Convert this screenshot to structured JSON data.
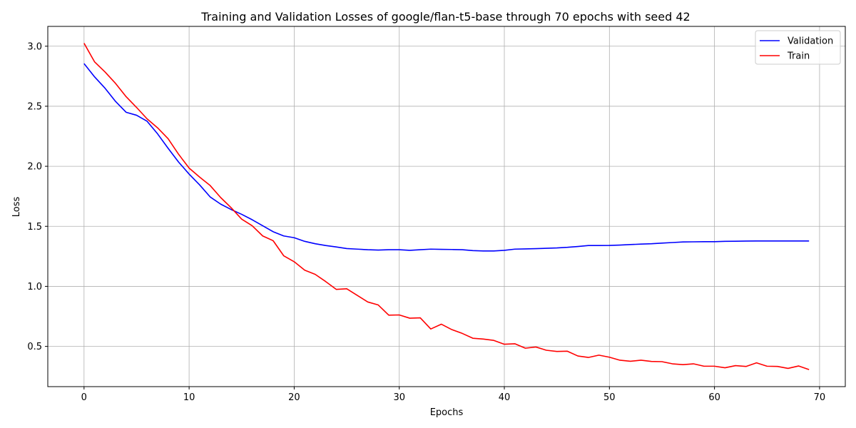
{
  "chart_data": {
    "type": "line",
    "title": "Training and Validation Losses of google/flan-t5-base through 70 epochs with seed 42",
    "xlabel": "Epochs",
    "ylabel": "Loss",
    "xlim": [
      -3.45,
      72.45
    ],
    "ylim": [
      0.165,
      3.165
    ],
    "xticks": [
      0,
      10,
      20,
      30,
      40,
      50,
      60,
      70
    ],
    "yticks": [
      0.5,
      1.0,
      1.5,
      2.0,
      2.5,
      3.0
    ],
    "xtick_labels": [
      "0",
      "10",
      "20",
      "30",
      "40",
      "50",
      "60",
      "70"
    ],
    "ytick_labels": [
      "0.5",
      "1.0",
      "1.5",
      "2.0",
      "2.5",
      "3.0"
    ],
    "grid": true,
    "legend_position": "top-right",
    "series": [
      {
        "name": "Validation",
        "color": "#0000ff",
        "x": [
          0,
          1,
          2,
          3,
          4,
          5,
          6,
          7,
          8,
          9,
          10,
          11,
          12,
          13,
          14,
          15,
          16,
          17,
          18,
          19,
          20,
          21,
          22,
          23,
          24,
          25,
          26,
          27,
          28,
          29,
          30,
          31,
          32,
          33,
          34,
          35,
          36,
          37,
          38,
          39,
          40,
          41,
          42,
          43,
          44,
          45,
          46,
          47,
          48,
          49,
          50,
          51,
          52,
          53,
          54,
          55,
          56,
          57,
          58,
          59,
          60,
          61,
          62,
          63,
          64,
          65,
          66,
          67,
          68,
          69
        ],
        "values": [
          2.855,
          2.745,
          2.65,
          2.54,
          2.45,
          2.425,
          2.375,
          2.27,
          2.15,
          2.035,
          1.935,
          1.845,
          1.745,
          1.685,
          1.64,
          1.6,
          1.555,
          1.505,
          1.455,
          1.42,
          1.405,
          1.375,
          1.355,
          1.34,
          1.328,
          1.315,
          1.31,
          1.305,
          1.302,
          1.305,
          1.305,
          1.3,
          1.305,
          1.31,
          1.308,
          1.307,
          1.305,
          1.298,
          1.295,
          1.295,
          1.3,
          1.31,
          1.312,
          1.314,
          1.317,
          1.32,
          1.325,
          1.332,
          1.34,
          1.34,
          1.341,
          1.344,
          1.348,
          1.352,
          1.355,
          1.36,
          1.365,
          1.37,
          1.371,
          1.372,
          1.372,
          1.375,
          1.376,
          1.377,
          1.378,
          1.378,
          1.378,
          1.378,
          1.378,
          1.378
        ]
      },
      {
        "name": "Train",
        "color": "#ff0000",
        "x": [
          0,
          1,
          2,
          3,
          4,
          5,
          6,
          7,
          8,
          9,
          10,
          11,
          12,
          13,
          14,
          15,
          16,
          17,
          18,
          19,
          20,
          21,
          22,
          23,
          24,
          25,
          26,
          27,
          28,
          29,
          30,
          31,
          32,
          33,
          34,
          35,
          36,
          37,
          38,
          39,
          40,
          41,
          42,
          43,
          44,
          45,
          46,
          47,
          48,
          49,
          50,
          51,
          52,
          53,
          54,
          55,
          56,
          57,
          58,
          59,
          60,
          61,
          62,
          63,
          64,
          65,
          66,
          67,
          68,
          69
        ],
        "values": [
          3.025,
          2.87,
          2.785,
          2.69,
          2.58,
          2.49,
          2.395,
          2.32,
          2.23,
          2.1,
          1.985,
          1.91,
          1.84,
          1.74,
          1.655,
          1.56,
          1.505,
          1.42,
          1.38,
          1.255,
          1.205,
          1.135,
          1.1,
          1.04,
          0.975,
          0.98,
          0.925,
          0.87,
          0.845,
          0.76,
          0.762,
          0.735,
          0.738,
          0.645,
          0.685,
          0.64,
          0.608,
          0.568,
          0.561,
          0.55,
          0.518,
          0.522,
          0.485,
          0.495,
          0.468,
          0.458,
          0.46,
          0.42,
          0.408,
          0.427,
          0.41,
          0.385,
          0.376,
          0.385,
          0.375,
          0.373,
          0.355,
          0.348,
          0.355,
          0.335,
          0.335,
          0.322,
          0.34,
          0.333,
          0.363,
          0.335,
          0.333,
          0.317,
          0.337,
          0.307
        ]
      }
    ]
  }
}
